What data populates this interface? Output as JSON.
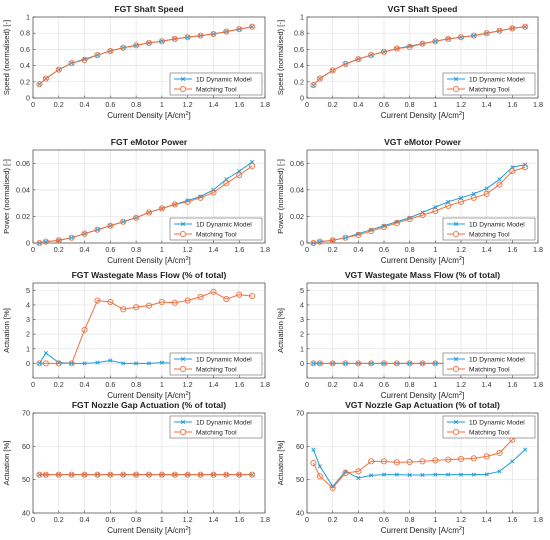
{
  "style": {
    "model_color": "#1f9bd6",
    "tool_color": "#f0703f",
    "grid_color": "#e3e3e3",
    "axis_color": "#444444"
  },
  "chart_data": [
    {
      "type": "line",
      "title": "FGT Shaft Speed",
      "xlabel": "Current Density [A/cm²]",
      "ylabel": "Speed (normalised) [-]",
      "xlim": [
        0,
        1.8
      ],
      "ylim": [
        0,
        1
      ],
      "xticks": [
        "0",
        "0.2",
        "0.4",
        "0.6",
        "0.8",
        "1",
        "1.2",
        "1.4",
        "1.6",
        "1.8"
      ],
      "yticks": [
        "0",
        "0.2",
        "0.4",
        "0.6",
        "0.8",
        "1"
      ],
      "grid": true,
      "legend": "bottom-right",
      "x": [
        0.05,
        0.1,
        0.2,
        0.3,
        0.4,
        0.5,
        0.6,
        0.7,
        0.8,
        0.9,
        1.0,
        1.1,
        1.2,
        1.3,
        1.4,
        1.5,
        1.6,
        1.7
      ],
      "series": [
        {
          "name": "1D Dynamic Model",
          "values": [
            0.17,
            0.24,
            0.35,
            0.43,
            0.48,
            0.53,
            0.58,
            0.62,
            0.65,
            0.68,
            0.7,
            0.73,
            0.75,
            0.77,
            0.79,
            0.82,
            0.85,
            0.88
          ]
        },
        {
          "name": "Matching Tool",
          "values": [
            0.17,
            0.24,
            0.35,
            0.43,
            0.47,
            0.53,
            0.58,
            0.62,
            0.65,
            0.68,
            0.7,
            0.73,
            0.75,
            0.77,
            0.79,
            0.82,
            0.85,
            0.88
          ]
        }
      ]
    },
    {
      "type": "line",
      "title": "VGT Shaft Speed",
      "xlabel": "Current Density [A/cm²]",
      "ylabel": "Speed (normalised) [-]",
      "xlim": [
        0,
        1.8
      ],
      "ylim": [
        0,
        1
      ],
      "xticks": [
        "0",
        "0.2",
        "0.4",
        "0.6",
        "0.8",
        "1",
        "1.2",
        "1.4",
        "1.6",
        "1.8"
      ],
      "yticks": [
        "0",
        "0.2",
        "0.4",
        "0.6",
        "0.8",
        "1"
      ],
      "grid": true,
      "legend": "bottom-right",
      "x": [
        0.05,
        0.1,
        0.2,
        0.3,
        0.4,
        0.5,
        0.6,
        0.7,
        0.8,
        0.9,
        1.0,
        1.1,
        1.2,
        1.3,
        1.4,
        1.5,
        1.6,
        1.7
      ],
      "series": [
        {
          "name": "1D Dynamic Model",
          "values": [
            0.16,
            0.24,
            0.34,
            0.42,
            0.48,
            0.53,
            0.57,
            0.61,
            0.64,
            0.67,
            0.7,
            0.73,
            0.75,
            0.77,
            0.8,
            0.83,
            0.86,
            0.88
          ]
        },
        {
          "name": "Matching Tool",
          "values": [
            0.16,
            0.24,
            0.34,
            0.42,
            0.48,
            0.53,
            0.57,
            0.61,
            0.63,
            0.67,
            0.7,
            0.73,
            0.75,
            0.77,
            0.8,
            0.83,
            0.86,
            0.88
          ]
        }
      ]
    },
    {
      "type": "line",
      "title": "FGT eMotor Power",
      "xlabel": "Current Density [A/cm²]",
      "ylabel": "Power (normalised) [-]",
      "xlim": [
        0,
        1.8
      ],
      "ylim": [
        0,
        0.07
      ],
      "xticks": [
        "0",
        "0.2",
        "0.4",
        "0.6",
        "0.8",
        "1",
        "1.2",
        "1.4",
        "1.6",
        "1.8"
      ],
      "yticks": [
        "0",
        "0.02",
        "0.04",
        "0.06"
      ],
      "ytick_values": [
        0,
        0.02,
        0.04,
        0.06
      ],
      "grid": true,
      "legend": "bottom-right",
      "x": [
        0.05,
        0.1,
        0.2,
        0.3,
        0.4,
        0.5,
        0.6,
        0.7,
        0.8,
        0.9,
        1.0,
        1.1,
        1.2,
        1.3,
        1.4,
        1.5,
        1.6,
        1.7
      ],
      "series": [
        {
          "name": "1D Dynamic Model",
          "values": [
            0.0,
            0.001,
            0.002,
            0.004,
            0.007,
            0.01,
            0.013,
            0.016,
            0.019,
            0.023,
            0.026,
            0.029,
            0.032,
            0.035,
            0.04,
            0.048,
            0.054,
            0.061
          ]
        },
        {
          "name": "Matching Tool",
          "values": [
            0.0,
            0.001,
            0.002,
            0.004,
            0.007,
            0.01,
            0.013,
            0.016,
            0.019,
            0.023,
            0.026,
            0.029,
            0.031,
            0.034,
            0.038,
            0.045,
            0.051,
            0.058
          ]
        }
      ]
    },
    {
      "type": "line",
      "title": "VGT eMotor Power",
      "xlabel": "Current Density [A/cm²]",
      "ylabel": "Power (normalised) [-]",
      "xlim": [
        0,
        1.8
      ],
      "ylim": [
        0,
        0.07
      ],
      "xticks": [
        "0",
        "0.2",
        "0.4",
        "0.6",
        "0.8",
        "1",
        "1.2",
        "1.4",
        "1.6",
        "1.8"
      ],
      "yticks": [
        "0",
        "0.02",
        "0.04",
        "0.06"
      ],
      "ytick_values": [
        0,
        0.02,
        0.04,
        0.06
      ],
      "grid": true,
      "legend": "bottom-right",
      "x": [
        0.05,
        0.1,
        0.2,
        0.3,
        0.4,
        0.5,
        0.6,
        0.7,
        0.8,
        0.9,
        1.0,
        1.1,
        1.2,
        1.3,
        1.4,
        1.5,
        1.6,
        1.7
      ],
      "series": [
        {
          "name": "1D Dynamic Model",
          "values": [
            0.0,
            0.001,
            0.002,
            0.004,
            0.007,
            0.01,
            0.013,
            0.016,
            0.019,
            0.023,
            0.027,
            0.031,
            0.034,
            0.037,
            0.041,
            0.048,
            0.057,
            0.059
          ]
        },
        {
          "name": "Matching Tool",
          "values": [
            0.0,
            0.001,
            0.002,
            0.004,
            0.006,
            0.009,
            0.012,
            0.015,
            0.018,
            0.021,
            0.024,
            0.028,
            0.031,
            0.034,
            0.037,
            0.044,
            0.054,
            0.057
          ]
        }
      ]
    },
    {
      "type": "line",
      "title": "FGT Wastegate Mass Flow (% of total)",
      "xlabel": "Current Density [A/cm²]",
      "ylabel": "Actuation [%]",
      "xlim": [
        0,
        1.8
      ],
      "ylim": [
        -1,
        5.5
      ],
      "xticks": [
        "0",
        "0.2",
        "0.4",
        "0.6",
        "0.8",
        "1",
        "1.2",
        "1.4",
        "1.6",
        "1.8"
      ],
      "yticks": [
        "0",
        "1",
        "2",
        "3",
        "4",
        "5"
      ],
      "ytick_values": [
        0,
        1,
        2,
        3,
        4,
        5
      ],
      "grid": true,
      "legend": "bottom-right",
      "x": [
        0.05,
        0.1,
        0.2,
        0.3,
        0.4,
        0.5,
        0.6,
        0.7,
        0.8,
        0.9,
        1.0,
        1.1,
        1.2,
        1.3,
        1.4,
        1.5,
        1.6,
        1.7
      ],
      "series": [
        {
          "name": "1D Dynamic Model",
          "values": [
            0.0,
            0.7,
            0.05,
            0.0,
            0.0,
            0.05,
            0.2,
            0.0,
            0.0,
            0.0,
            0.05,
            0.0,
            0.0,
            0.05,
            0.4,
            0.0,
            0.15,
            0.05
          ]
        },
        {
          "name": "Matching Tool",
          "values": [
            0.0,
            0.0,
            0.0,
            0.0,
            2.3,
            4.3,
            4.2,
            3.7,
            3.85,
            3.95,
            4.2,
            4.15,
            4.3,
            4.55,
            4.9,
            4.4,
            4.7,
            4.6
          ]
        }
      ]
    },
    {
      "type": "line",
      "title": "VGT Wastegate Mass Flow (% of total)",
      "xlabel": "Current Density [A/cm²]",
      "ylabel": "Actuation [%]",
      "xlim": [
        0,
        1.8
      ],
      "ylim": [
        -1,
        5.5
      ],
      "xticks": [
        "0",
        "0.2",
        "0.4",
        "0.6",
        "0.8",
        "1",
        "1.2",
        "1.4",
        "1.6",
        "1.8"
      ],
      "yticks": [
        "0",
        "1",
        "2",
        "3",
        "4",
        "5"
      ],
      "ytick_values": [
        0,
        1,
        2,
        3,
        4,
        5
      ],
      "grid": true,
      "legend": "bottom-right",
      "x": [
        0.05,
        0.1,
        0.2,
        0.3,
        0.4,
        0.5,
        0.6,
        0.7,
        0.8,
        0.9,
        1.0,
        1.1,
        1.2,
        1.3,
        1.4,
        1.5,
        1.6,
        1.7
      ],
      "series": [
        {
          "name": "1D Dynamic Model",
          "values": [
            0,
            0,
            0,
            0,
            0,
            0,
            0,
            0,
            0,
            0,
            0,
            0,
            0,
            0,
            0,
            0,
            0,
            0
          ]
        },
        {
          "name": "Matching Tool",
          "values": [
            0,
            0,
            0,
            0,
            0,
            0,
            0,
            0,
            0,
            0,
            0,
            0,
            0,
            0,
            0,
            0,
            0,
            0
          ]
        }
      ]
    },
    {
      "type": "line",
      "title": "FGT Nozzle Gap Actuation (% of total)",
      "xlabel": "Current Density [A/cm²]",
      "ylabel": "Actuation [%]",
      "xlim": [
        0,
        1.8
      ],
      "ylim": [
        40,
        70
      ],
      "xticks": [
        "0",
        "0.2",
        "0.4",
        "0.6",
        "0.8",
        "1",
        "1.2",
        "1.4",
        "1.6",
        "1.8"
      ],
      "yticks": [
        "40",
        "50",
        "60",
        "70"
      ],
      "ytick_values": [
        40,
        50,
        60,
        70
      ],
      "grid": true,
      "legend": "top-right",
      "x": [
        0.05,
        0.1,
        0.2,
        0.3,
        0.4,
        0.5,
        0.6,
        0.7,
        0.8,
        0.9,
        1.0,
        1.1,
        1.2,
        1.3,
        1.4,
        1.5,
        1.6,
        1.7
      ],
      "series": [
        {
          "name": "1D Dynamic Model",
          "values": [
            51.5,
            51.5,
            51.5,
            51.5,
            51.5,
            51.5,
            51.5,
            51.5,
            51.5,
            51.5,
            51.5,
            51.5,
            51.5,
            51.5,
            51.5,
            51.5,
            51.5,
            51.5
          ]
        },
        {
          "name": "Matching Tool",
          "values": [
            51.5,
            51.5,
            51.5,
            51.5,
            51.5,
            51.5,
            51.5,
            51.5,
            51.5,
            51.5,
            51.5,
            51.5,
            51.5,
            51.5,
            51.5,
            51.5,
            51.5,
            51.5
          ]
        }
      ]
    },
    {
      "type": "line",
      "title": "VGT Nozzle Gap Actuation (% of total)",
      "xlabel": "Current Density [A/cm²]",
      "ylabel": "Actuation [%]",
      "xlim": [
        0,
        1.8
      ],
      "ylim": [
        40,
        70
      ],
      "xticks": [
        "0",
        "0.2",
        "0.4",
        "0.6",
        "0.8",
        "1",
        "1.2",
        "1.4",
        "1.6",
        "1.8"
      ],
      "yticks": [
        "40",
        "50",
        "60",
        "70"
      ],
      "ytick_values": [
        40,
        50,
        60,
        70
      ],
      "grid": true,
      "legend": "top-right",
      "x": [
        0.05,
        0.1,
        0.2,
        0.3,
        0.4,
        0.5,
        0.6,
        0.7,
        0.8,
        0.9,
        1.0,
        1.1,
        1.2,
        1.3,
        1.4,
        1.5,
        1.6,
        1.7
      ],
      "series": [
        {
          "name": "1D Dynamic Model",
          "values": [
            59,
            54,
            48,
            52.5,
            50.5,
            51.3,
            51.5,
            51.5,
            51.4,
            51.4,
            51.5,
            51.5,
            51.5,
            51.5,
            51.6,
            52.5,
            55.5,
            59
          ]
        },
        {
          "name": "Matching Tool",
          "values": [
            55,
            51,
            47.5,
            52,
            52.5,
            55.5,
            55.5,
            55.2,
            55.3,
            55.5,
            55.8,
            56,
            56.2,
            56.4,
            57,
            58,
            62,
            65.5
          ]
        }
      ]
    }
  ]
}
